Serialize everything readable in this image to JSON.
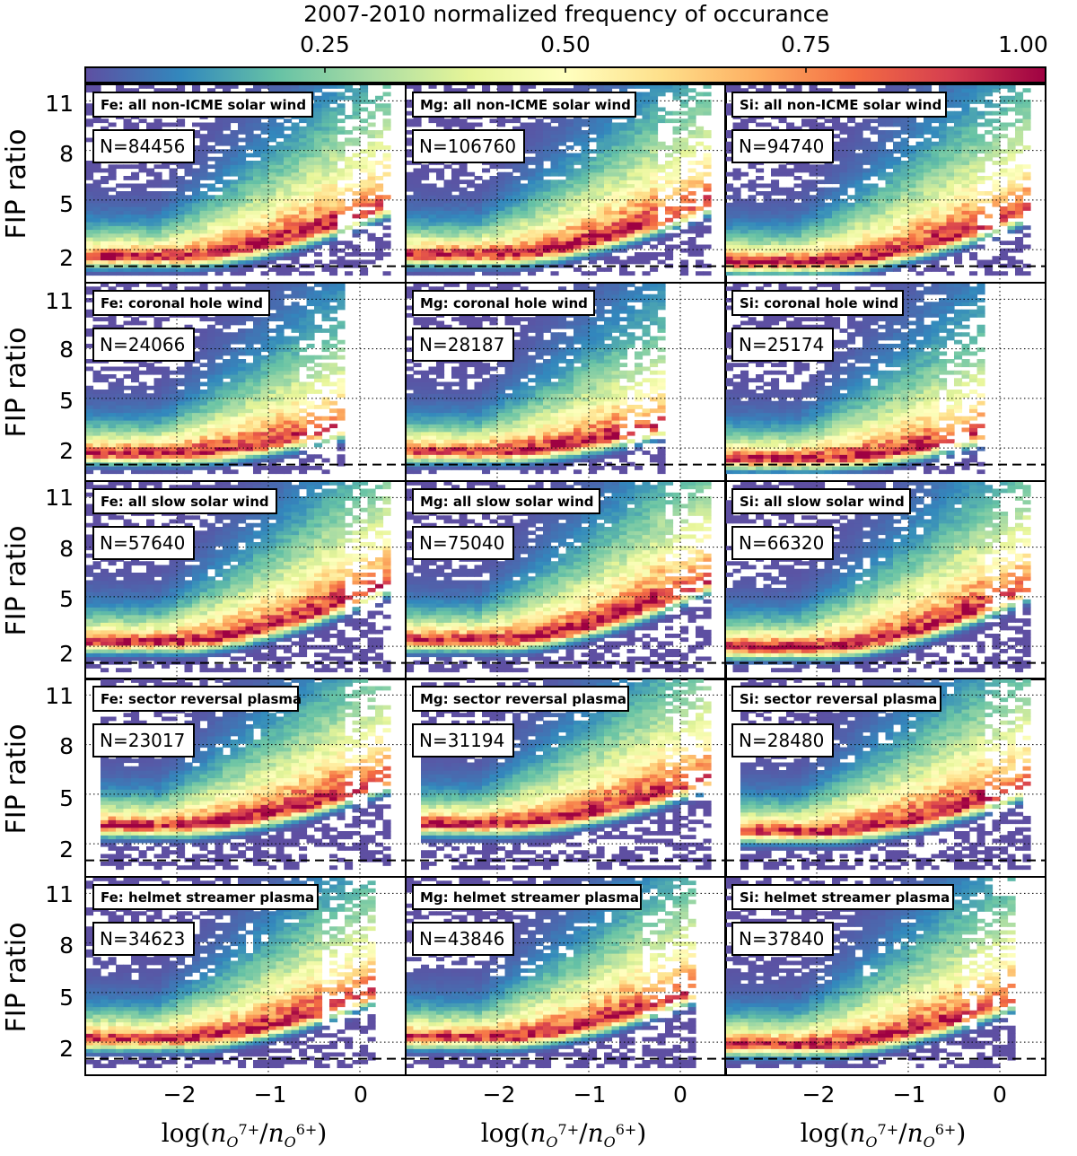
{
  "chart_data": {
    "type": "heatmap",
    "colorbar": {
      "title": "2007-2010 normalized frequency of occurance",
      "ticks": [
        "0.25",
        "0.50",
        "0.75",
        "1.00"
      ],
      "range": [
        0,
        1
      ],
      "colormap": "Spectral_r",
      "stops": [
        "#5e4fa2",
        "#3288bd",
        "#66c2a5",
        "#abdda4",
        "#e6f598",
        "#ffffbf",
        "#fee08b",
        "#fdae61",
        "#f46d43",
        "#d53e4f",
        "#9e0142"
      ]
    },
    "xlabel": "log(n_{O^{7+}}/n_{O^{6+}})",
    "xlabel_parts": {
      "pre": "log(",
      "n1": "n",
      "sub1": "O",
      "sup1": "7+",
      "slash": "/",
      "n2": "n",
      "sub2": "O",
      "sup2": "6+",
      "post": ")"
    },
    "ylabel": "FIP ratio",
    "xlim": [
      -3,
      0.5
    ],
    "ylim": [
      0,
      12
    ],
    "xticks": [
      -2,
      -1,
      0
    ],
    "xtick_labels": [
      "−2",
      "−1",
      "0"
    ],
    "yticks": [
      2,
      5,
      8,
      11
    ],
    "ytick_labels": [
      "2",
      "5",
      "8",
      "11"
    ],
    "reference_line_y": 1,
    "columns": [
      "Fe",
      "Mg",
      "Si"
    ],
    "rows": [
      "all non-ICME solar wind",
      "coronal hole wind",
      "all slow solar wind",
      "sector reversal plasma",
      "helmet streamer plasma"
    ],
    "panels": [
      {
        "label": "Fe: all non-ICME solar wind",
        "n": "N=84456"
      },
      {
        "label": "Mg: all non-ICME solar wind",
        "n": "N=106760"
      },
      {
        "label": "Si: all non-ICME solar wind",
        "n": "N=94740"
      },
      {
        "label": "Fe: coronal hole wind",
        "n": "N=24066"
      },
      {
        "label": "Mg: coronal hole wind",
        "n": "N=28187"
      },
      {
        "label": "Si: coronal hole wind",
        "n": "N=25174"
      },
      {
        "label": "Fe: all slow solar wind",
        "n": "N=57640"
      },
      {
        "label": "Mg: all slow solar wind",
        "n": "N=75040"
      },
      {
        "label": "Si: all slow solar wind",
        "n": "N=66320"
      },
      {
        "label": "Fe: sector reversal plasma",
        "n": "N=23017"
      },
      {
        "label": "Mg: sector reversal plasma",
        "n": "N=31194"
      },
      {
        "label": "Si: sector reversal plasma",
        "n": "N=28480"
      },
      {
        "label": "Fe: helmet streamer plasma",
        "n": "N=34623"
      },
      {
        "label": "Mg: helmet streamer plasma",
        "n": "N=43846"
      },
      {
        "label": "Si: helmet streamer plasma",
        "n": "N=37840"
      }
    ]
  }
}
